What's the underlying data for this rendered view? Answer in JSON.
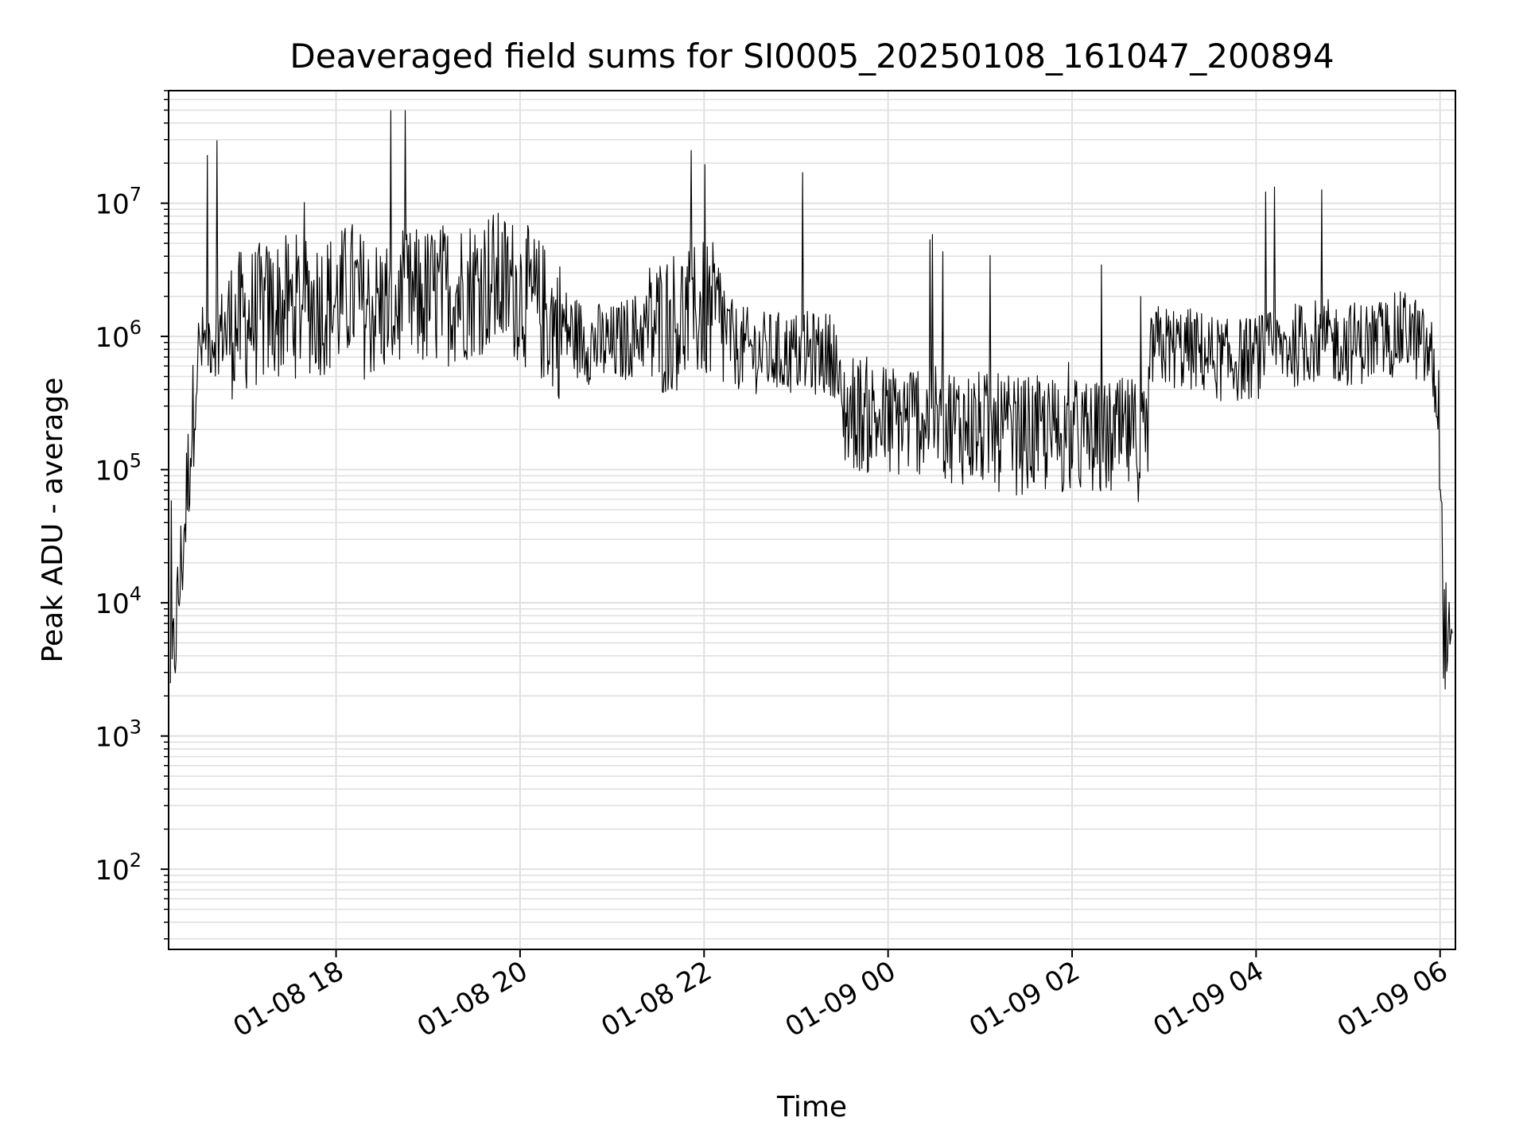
{
  "chart_data": {
    "type": "line",
    "title": "Deaveraged field sums for SI0005_20250108_161047_200894",
    "xlabel": "Time",
    "ylabel": "Peak ADU - average",
    "y_scale": "log",
    "ylim": [
      25,
      70000000
    ],
    "xlim": [
      "2025-01-08 16:10:47",
      "2025-01-09 06:10:00"
    ],
    "x_ticks": [
      {
        "label": "01-08 18",
        "value": "2025-01-08 18:00"
      },
      {
        "label": "01-08 20",
        "value": "2025-01-08 20:00"
      },
      {
        "label": "01-08 22",
        "value": "2025-01-08 22:00"
      },
      {
        "label": "01-09 00",
        "value": "2025-01-09 00:00"
      },
      {
        "label": "01-09 02",
        "value": "2025-01-09 02:00"
      },
      {
        "label": "01-09 04",
        "value": "2025-01-09 04:00"
      },
      {
        "label": "01-09 06",
        "value": "2025-01-09 06:00"
      }
    ],
    "y_ticks": [
      {
        "base": "10",
        "exp": "2",
        "value": 100
      },
      {
        "base": "10",
        "exp": "3",
        "value": 1000
      },
      {
        "base": "10",
        "exp": "4",
        "value": 10000
      },
      {
        "base": "10",
        "exp": "5",
        "value": 100000
      },
      {
        "base": "10",
        "exp": "6",
        "value": 1000000
      },
      {
        "base": "10",
        "exp": "7",
        "value": 10000000
      }
    ],
    "grid": true,
    "grid_color": "#e0e0e0",
    "line_color": "#000000",
    "series": [
      {
        "x": [
          "2025-01-08 16:12",
          "2025-01-08 16:15",
          "2025-01-08 16:18",
          "2025-01-08 16:21",
          "2025-01-08 16:24",
          "2025-01-08 16:27",
          "2025-01-08 16:30",
          "2025-01-08 16:35",
          "2025-01-08 16:45",
          "2025-01-08 17:00",
          "2025-01-08 17:20",
          "2025-01-08 17:40",
          "2025-01-08 18:00",
          "2025-01-08 18:10",
          "2025-01-08 18:20",
          "2025-01-08 18:40",
          "2025-01-08 19:00",
          "2025-01-08 19:20",
          "2025-01-08 19:40",
          "2025-01-08 20:00",
          "2025-01-08 20:20",
          "2025-01-08 20:40",
          "2025-01-08 21:00",
          "2025-01-08 21:20",
          "2025-01-08 21:40",
          "2025-01-08 22:00",
          "2025-01-08 22:10",
          "2025-01-08 22:20",
          "2025-01-08 22:40",
          "2025-01-08 23:00",
          "2025-01-08 23:15",
          "2025-01-08 23:25",
          "2025-01-08 23:30",
          "2025-01-08 23:40",
          "2025-01-09 00:00",
          "2025-01-09 00:20",
          "2025-01-09 00:40",
          "2025-01-09 01:00",
          "2025-01-09 01:20",
          "2025-01-09 01:40",
          "2025-01-09 02:00",
          "2025-01-09 02:20",
          "2025-01-09 02:40",
          "2025-01-09 02:48",
          "2025-01-09 02:52",
          "2025-01-09 03:00",
          "2025-01-09 03:20",
          "2025-01-09 03:40",
          "2025-01-09 04:00",
          "2025-01-09 04:20",
          "2025-01-09 04:40",
          "2025-01-09 05:00",
          "2025-01-09 05:20",
          "2025-01-09 05:40",
          "2025-01-09 05:55",
          "2025-01-09 06:00",
          "2025-01-09 06:02",
          "2025-01-09 06:05",
          "2025-01-09 06:08"
        ],
        "y": [
          2000,
          6000,
          15000,
          40000,
          120000,
          300000,
          800000,
          1000000,
          1200000,
          1500000,
          1800000,
          2000000,
          2000000,
          2500000,
          1800000,
          2000000,
          2200000,
          2500000,
          3000000,
          2500000,
          1500000,
          1000000,
          900000,
          1200000,
          1500000,
          1800000,
          1500000,
          900000,
          800000,
          800000,
          800000,
          800000,
          300000,
          300000,
          250000,
          280000,
          250000,
          220000,
          200000,
          200000,
          200000,
          180000,
          200000,
          150000,
          900000,
          900000,
          850000,
          700000,
          750000,
          900000,
          1000000,
          950000,
          1000000,
          1200000,
          700000,
          200000,
          8000,
          5000,
          3000
        ]
      }
    ]
  }
}
